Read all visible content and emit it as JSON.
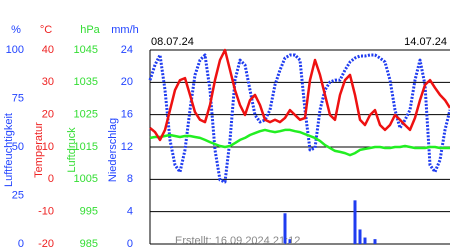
{
  "chart_data": {
    "type": "line",
    "start_label": "08.07.24",
    "end_label": "14.07.24",
    "created": "Erstellt: 16.09.2024 21:12",
    "axes": [
      {
        "title": "Luftfeuchtigkeit",
        "unit": "%",
        "color": "#2244ff",
        "lim": [
          0,
          100
        ],
        "ticks": [
          0,
          25,
          50,
          75,
          100
        ]
      },
      {
        "title": "Temperatur",
        "unit": "°C",
        "color": "#ee2222",
        "lim": [
          -20,
          40
        ],
        "ticks": [
          -20,
          -10,
          0,
          10,
          20,
          30,
          40
        ]
      },
      {
        "title": "Luftdruck",
        "unit": "hPa",
        "color": "#33dd33",
        "lim": [
          985,
          1045
        ],
        "ticks": [
          985,
          995,
          1005,
          1015,
          1025,
          1035,
          1045
        ]
      },
      {
        "title": "Niederschlag",
        "unit": "mm/h",
        "color": "#2244ff",
        "lim": [
          0,
          24
        ],
        "ticks": [
          0,
          4,
          8,
          12,
          16,
          20,
          24
        ]
      }
    ],
    "grid": true,
    "series": [
      {
        "axis": 0,
        "type": "dotted-line",
        "color": "#1f3cf0",
        "values": [
          84.5,
          92.3,
          97.4,
          79.4,
          53.6,
          40.7,
          37.1,
          48.5,
          69.1,
          87.1,
          94.8,
          97.4,
          79.4,
          48.5,
          33,
          32,
          53.6,
          84.5,
          94.8,
          92.3,
          79.4,
          66.5,
          62.9,
          63.9,
          69.1,
          82,
          89.7,
          95.9,
          97.4,
          97.4,
          94.8,
          69.1,
          48.5,
          49.5,
          69.1,
          79.4,
          83.5,
          84.5,
          84.5,
          89.7,
          93.8,
          95.9,
          96.9,
          96.9,
          97.4,
          97.4,
          95.9,
          93.8,
          84.5,
          69.1,
          59.8,
          63.9,
          69.1,
          84.5,
          94.8,
          82,
          40.7,
          37.1,
          43.3,
          58.8,
          69.1
        ]
      },
      {
        "axis": 2,
        "type": "line",
        "color": "#22ee22",
        "values": [
          1017.8,
          1018.1,
          1018.1,
          1018.4,
          1018.7,
          1018.4,
          1018.1,
          1018.4,
          1018.4,
          1018.1,
          1017.8,
          1017.2,
          1016.5,
          1015.9,
          1015.3,
          1015,
          1015.3,
          1016.2,
          1017.2,
          1017.8,
          1018.7,
          1019.3,
          1019.9,
          1020.3,
          1019.9,
          1019.6,
          1019.9,
          1020.3,
          1020.3,
          1019.9,
          1019.6,
          1019,
          1018.4,
          1017.8,
          1016.9,
          1015.6,
          1014.7,
          1013.8,
          1013.5,
          1013.1,
          1012.5,
          1013.1,
          1014.1,
          1014.4,
          1014.7,
          1015,
          1015,
          1014.7,
          1014.7,
          1015,
          1015,
          1015.3,
          1015,
          1014.7,
          1014.7,
          1014.7,
          1015,
          1015,
          1014.7,
          1014.7,
          1014.7
        ]
      },
      {
        "axis": 1,
        "type": "line",
        "color": "#ee1111",
        "values": [
          15.9,
          14.6,
          12.2,
          15.3,
          21.4,
          27.6,
          30.7,
          31.3,
          26.1,
          20.8,
          18.4,
          17.7,
          23,
          30.7,
          36.9,
          40,
          33.8,
          27.6,
          23,
          19.9,
          24.5,
          26.1,
          23,
          18.4,
          17.7,
          18.4,
          17.7,
          19,
          21.4,
          19.9,
          18.4,
          19,
          30.7,
          36.9,
          32.3,
          26.1,
          19.9,
          18.4,
          26.1,
          30.7,
          32.3,
          26.1,
          18.4,
          16.8,
          19.9,
          21.4,
          16.8,
          15.3,
          16.8,
          19.9,
          18.4,
          16.8,
          15.3,
          19,
          24.5,
          29.2,
          30.7,
          28.3,
          26.1,
          24.5,
          22.1
        ]
      },
      {
        "axis": 3,
        "type": "bar",
        "color": "#1f3cf0",
        "values": [
          0,
          0,
          0,
          0,
          0,
          0,
          0,
          0,
          0,
          0,
          0,
          0,
          0,
          0,
          0,
          0,
          0,
          0,
          0,
          0,
          0,
          0,
          0,
          0,
          0,
          0,
          0,
          3.8,
          0.6,
          0,
          0,
          0,
          0,
          0,
          0,
          0,
          0,
          0,
          0,
          0,
          0,
          5.4,
          1.8,
          0.8,
          0,
          0.6,
          0,
          0,
          0,
          0,
          0,
          0,
          0,
          0,
          0,
          0,
          0,
          0,
          0,
          0,
          0
        ]
      }
    ]
  }
}
